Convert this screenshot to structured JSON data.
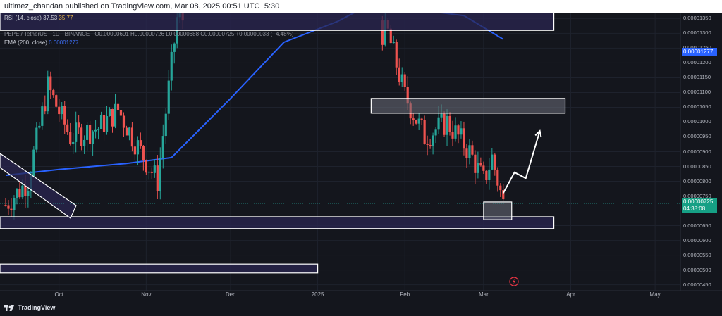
{
  "header": {
    "publisher_line": "ultimez_chandan published on TradingView.com, Mar 08, 2025 00:51 UTC+5:30"
  },
  "indicators": {
    "rsi_label": "RSI (14, close)",
    "rsi_value_1": "37.53",
    "rsi_value_2": "35.77",
    "symbol_line": "PEPE / TetherUS · 1D · BINANCE · O0.00000691 H0.00000726 L0.00000688 C0.00000725 +0.00000033 (+4.48%)",
    "ema_label": "EMA (200, close)",
    "ema_value": "0.00001277"
  },
  "price_axis": {
    "labels": [
      "0.00001350",
      "0.00001300",
      "0.00001250",
      "0.00001200",
      "0.00001150",
      "0.00001100",
      "0.00001050",
      "0.00001000",
      "0.00000950",
      "0.00000900",
      "0.00000850",
      "0.00000800",
      "0.00000750",
      "0.00000650",
      "0.00000600",
      "0.00000550",
      "0.00000500",
      "0.00000450"
    ],
    "ema_tag": "0.00001277",
    "current_price": "0.00000725",
    "countdown": "04:38:08"
  },
  "time_axis": {
    "labels": [
      "Oct",
      "Nov",
      "Dec",
      "2025",
      "Feb",
      "Mar",
      "Apr",
      "May"
    ]
  },
  "brand": {
    "name": "TradingView"
  },
  "colors": {
    "background": "#14161d",
    "up": "#26a69a",
    "down": "#ef5350",
    "ema": "#2962ff",
    "zone_fill": "#2a2650",
    "zone_stroke": "#ffffff"
  },
  "chart_data": {
    "type": "candlestick",
    "symbol": "PEPE / TetherUS",
    "timeframe": "1D",
    "exchange": "BINANCE",
    "ylim": [
      4.3e-06,
      1.37e-05
    ],
    "x_range": [
      "2024-09-10",
      "2025-05-10"
    ],
    "price_scale_ticks": [
      1.35e-05,
      1.3e-05,
      1.25e-05,
      1.2e-05,
      1.15e-05,
      1.1e-05,
      1.05e-05,
      1e-05,
      9.5e-06,
      9e-06,
      8.5e-06,
      8e-06,
      7.5e-06,
      6.5e-06,
      6e-06,
      5.5e-06,
      5e-06,
      4.5e-06
    ],
    "last_close": 7.25e-06,
    "ema_200_last": 1.277e-05,
    "close_path": [
      {
        "date": "2024-09-12",
        "close": 7.2e-06
      },
      {
        "date": "2024-09-20",
        "close": 8e-06
      },
      {
        "date": "2024-09-27",
        "close": 1.12e-05
      },
      {
        "date": "2024-10-05",
        "close": 9.5e-06
      },
      {
        "date": "2024-10-15",
        "close": 9.8e-06
      },
      {
        "date": "2024-10-22",
        "close": 1.04e-05
      },
      {
        "date": "2024-10-30",
        "close": 9e-06
      },
      {
        "date": "2024-11-05",
        "close": 8e-06
      },
      {
        "date": "2024-11-12",
        "close": 1.35e-05
      },
      {
        "date": "2025-01-26",
        "close": 1.3e-05
      },
      {
        "date": "2025-02-01",
        "close": 1.09e-05
      },
      {
        "date": "2025-02-08",
        "close": 9.5e-06
      },
      {
        "date": "2025-02-16",
        "close": 1e-05
      },
      {
        "date": "2025-02-24",
        "close": 9e-06
      },
      {
        "date": "2025-03-01",
        "close": 8e-06
      },
      {
        "date": "2025-03-04",
        "close": 8.8e-06
      },
      {
        "date": "2025-03-08",
        "close": 7.25e-06
      }
    ],
    "ema_path": [
      {
        "date": "2024-09-12",
        "value": 8.2e-06
      },
      {
        "date": "2024-10-01",
        "value": 8.4e-06
      },
      {
        "date": "2024-10-25",
        "value": 8.6e-06
      },
      {
        "date": "2024-11-10",
        "value": 8.8e-06
      },
      {
        "date": "2024-12-01",
        "value": 1.08e-05
      },
      {
        "date": "2024-12-20",
        "value": 1.27e-05
      },
      {
        "date": "2025-01-08",
        "value": 1.34e-05
      },
      {
        "date": "2025-01-20",
        "value": 1.4e-05
      },
      {
        "date": "2025-02-22",
        "value": 1.36e-05
      },
      {
        "date": "2025-03-08",
        "value": 1.28e-05
      }
    ],
    "zones": [
      {
        "from": "2024-09-10",
        "to": "2025-03-26",
        "low": 1.31e-05,
        "high": 1.37e-05
      },
      {
        "from": "2025-01-20",
        "to": "2025-03-30",
        "low": 1.03e-05,
        "high": 1.08e-05
      },
      {
        "from": "2024-09-10",
        "to": "2025-03-26",
        "low": 6.4e-06,
        "high": 6.8e-06
      },
      {
        "from": "2024-09-10",
        "to": "2025-01-01",
        "low": 4.9e-06,
        "high": 5.2e-06
      },
      {
        "from": "2025-03-01",
        "to": "2025-03-11",
        "low": 6.7e-06,
        "high": 7.3e-06
      }
    ],
    "projection_path": [
      {
        "date": "2025-03-08",
        "value": 7.6e-06
      },
      {
        "date": "2025-03-12",
        "value": 8.3e-06
      },
      {
        "date": "2025-03-16",
        "value": 8.1e-06
      },
      {
        "date": "2025-03-21",
        "value": 9.7e-06
      }
    ]
  }
}
